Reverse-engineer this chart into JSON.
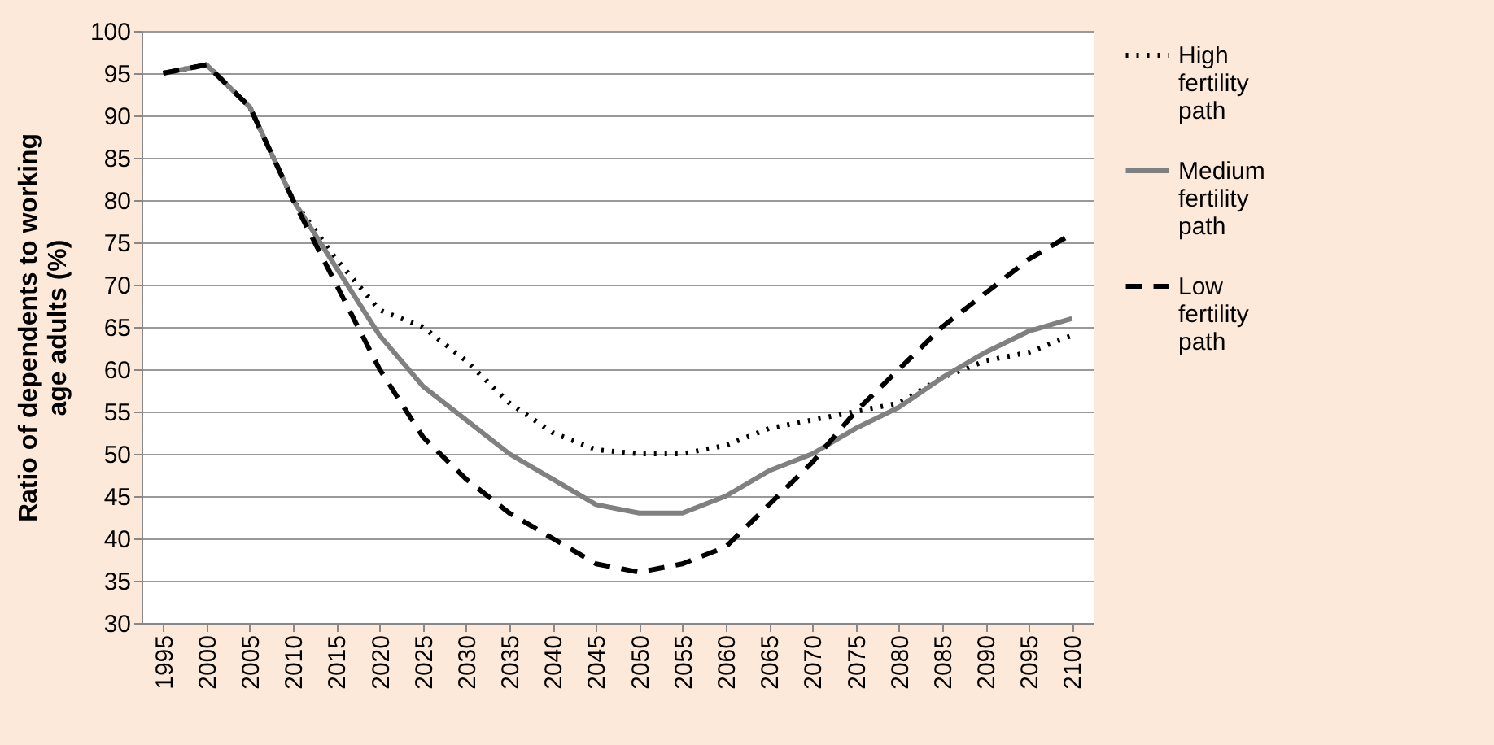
{
  "chart_data": {
    "type": "line",
    "ylabel": "Ratio of dependents to working age adults (%)",
    "categories": [
      "1995",
      "2000",
      "2005",
      "2010",
      "2015",
      "2020",
      "2025",
      "2030",
      "2035",
      "2040",
      "2045",
      "2050",
      "2055",
      "2060",
      "2065",
      "2070",
      "2075",
      "2080",
      "2085",
      "2090",
      "2095",
      "2100"
    ],
    "series": [
      {
        "name": "High fertility path",
        "color": "#000000",
        "line_style": "dotted",
        "values": [
          95,
          96,
          91,
          80,
          73,
          67,
          65,
          61,
          56,
          52.5,
          50.5,
          50,
          50,
          51,
          53,
          54,
          55,
          56,
          59,
          61,
          62,
          64
        ]
      },
      {
        "name": "Medium fertility path",
        "color": "#808080",
        "line_style": "solid",
        "values": [
          95,
          96,
          91,
          80,
          72,
          64,
          58,
          54,
          50,
          47,
          44,
          43,
          43,
          45,
          48,
          50,
          53,
          55.5,
          59,
          62,
          64.5,
          66
        ]
      },
      {
        "name": "Low fertility path",
        "color": "#000000",
        "line_style": "dashed",
        "values": [
          95,
          96,
          91,
          80,
          70,
          60,
          52,
          47,
          43,
          40,
          37,
          36,
          37,
          39,
          44,
          49,
          55,
          60,
          65,
          69,
          73,
          76
        ]
      }
    ],
    "ylim": [
      30,
      100
    ],
    "yticks": [
      30,
      35,
      40,
      45,
      50,
      55,
      60,
      65,
      70,
      75,
      80,
      85,
      90,
      95,
      100
    ],
    "grid": "y",
    "legend": "right"
  }
}
